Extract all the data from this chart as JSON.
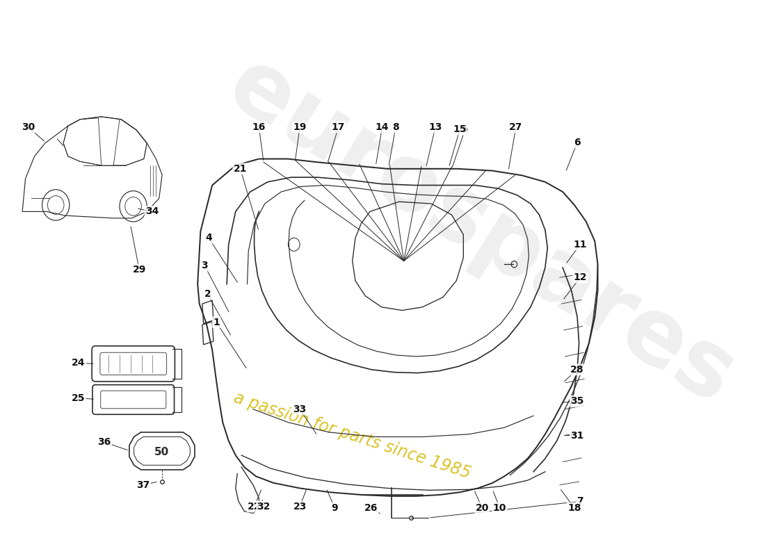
{
  "bg_color": "#ffffff",
  "line_color": "#2a2a2a",
  "label_color": "#111111",
  "watermark_color1": "#cccccc",
  "watermark_color2": "#d4b800",
  "figsize": [
    11.0,
    8.0
  ],
  "dpi": 100
}
